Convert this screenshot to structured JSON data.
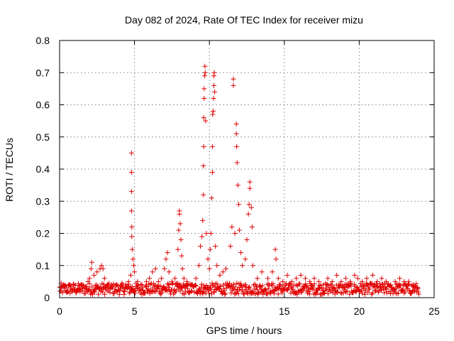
{
  "chart_data": {
    "type": "scatter",
    "title": "Day 082 of 2024, Rate Of TEC Index for receiver mizu",
    "xlabel": "GPS time / hours",
    "ylabel": "ROTI / TECUs",
    "xlim": [
      0,
      25
    ],
    "ylim": [
      0,
      0.8
    ],
    "grid": true,
    "marker": "+",
    "series_color": "#e00000",
    "x_ticks": [
      0,
      5,
      10,
      15,
      20,
      25
    ],
    "x_tick_labels": [
      "0",
      "5",
      "10",
      "15",
      "20",
      "25"
    ],
    "y_ticks": [
      0,
      0.1,
      0.2,
      0.3,
      0.4,
      0.5,
      0.6,
      0.7,
      0.8
    ],
    "y_tick_labels": [
      "0",
      "0.1",
      "0.2",
      "0.3",
      "0.4",
      "0.5",
      "0.6",
      "0.7",
      "0.8"
    ],
    "series": [
      {
        "name": "ROTI",
        "points": [
          [
            0.1,
            0.02
          ],
          [
            0.3,
            0.03
          ],
          [
            0.5,
            0.02
          ],
          [
            0.7,
            0.04
          ],
          [
            0.9,
            0.03
          ],
          [
            1.1,
            0.02
          ],
          [
            1.3,
            0.03
          ],
          [
            1.5,
            0.04
          ],
          [
            1.7,
            0.03
          ],
          [
            1.9,
            0.05
          ],
          [
            2.0,
            0.06
          ],
          [
            2.1,
            0.09
          ],
          [
            2.15,
            0.11
          ],
          [
            2.3,
            0.07
          ],
          [
            2.5,
            0.08
          ],
          [
            2.7,
            0.09
          ],
          [
            2.8,
            0.1
          ],
          [
            2.9,
            0.09
          ],
          [
            3.0,
            0.06
          ],
          [
            3.2,
            0.04
          ],
          [
            3.5,
            0.03
          ],
          [
            3.8,
            0.04
          ],
          [
            4.1,
            0.03
          ],
          [
            4.4,
            0.04
          ],
          [
            4.6,
            0.05
          ],
          [
            4.75,
            0.07
          ],
          [
            4.8,
            0.45
          ],
          [
            4.8,
            0.39
          ],
          [
            4.8,
            0.33
          ],
          [
            4.8,
            0.27
          ],
          [
            4.82,
            0.22
          ],
          [
            4.82,
            0.19
          ],
          [
            4.85,
            0.15
          ],
          [
            4.9,
            0.12
          ],
          [
            4.95,
            0.1
          ],
          [
            5.0,
            0.08
          ],
          [
            5.2,
            0.05
          ],
          [
            5.5,
            0.04
          ],
          [
            5.8,
            0.05
          ],
          [
            6.0,
            0.06
          ],
          [
            6.2,
            0.08
          ],
          [
            6.4,
            0.09
          ],
          [
            6.6,
            0.05
          ],
          [
            6.8,
            0.06
          ],
          [
            7.0,
            0.09
          ],
          [
            7.1,
            0.12
          ],
          [
            7.2,
            0.14
          ],
          [
            7.3,
            0.08
          ],
          [
            7.5,
            0.05
          ],
          [
            7.7,
            0.06
          ],
          [
            7.9,
            0.15
          ],
          [
            7.95,
            0.21
          ],
          [
            8.0,
            0.27
          ],
          [
            8.0,
            0.26
          ],
          [
            8.05,
            0.23
          ],
          [
            8.1,
            0.18
          ],
          [
            8.15,
            0.13
          ],
          [
            8.2,
            0.09
          ],
          [
            8.3,
            0.06
          ],
          [
            8.5,
            0.05
          ],
          [
            8.8,
            0.04
          ],
          [
            9.1,
            0.06
          ],
          [
            9.3,
            0.1
          ],
          [
            9.4,
            0.16
          ],
          [
            9.5,
            0.19
          ],
          [
            9.55,
            0.24
          ],
          [
            9.6,
            0.32
          ],
          [
            9.6,
            0.41
          ],
          [
            9.62,
            0.47
          ],
          [
            9.62,
            0.56
          ],
          [
            9.65,
            0.62
          ],
          [
            9.65,
            0.65
          ],
          [
            9.68,
            0.69
          ],
          [
            9.7,
            0.72
          ],
          [
            9.72,
            0.7
          ],
          [
            9.75,
            0.55
          ],
          [
            9.8,
            0.2
          ],
          [
            9.9,
            0.12
          ],
          [
            10.0,
            0.09
          ],
          [
            10.05,
            0.15
          ],
          [
            10.1,
            0.2
          ],
          [
            10.15,
            0.31
          ],
          [
            10.2,
            0.39
          ],
          [
            10.2,
            0.47
          ],
          [
            10.22,
            0.57
          ],
          [
            10.25,
            0.58
          ],
          [
            10.28,
            0.62
          ],
          [
            10.3,
            0.66
          ],
          [
            10.3,
            0.69
          ],
          [
            10.32,
            0.7
          ],
          [
            10.35,
            0.64
          ],
          [
            10.4,
            0.16
          ],
          [
            10.5,
            0.1
          ],
          [
            10.7,
            0.07
          ],
          [
            10.9,
            0.08
          ],
          [
            11.1,
            0.09
          ],
          [
            11.4,
            0.16
          ],
          [
            11.5,
            0.22
          ],
          [
            11.6,
            0.68
          ],
          [
            11.6,
            0.66
          ],
          [
            11.7,
            0.2
          ],
          [
            11.8,
            0.54
          ],
          [
            11.8,
            0.51
          ],
          [
            11.82,
            0.47
          ],
          [
            11.85,
            0.42
          ],
          [
            11.9,
            0.35
          ],
          [
            11.95,
            0.29
          ],
          [
            12.0,
            0.21
          ],
          [
            12.1,
            0.14
          ],
          [
            12.2,
            0.1
          ],
          [
            12.4,
            0.12
          ],
          [
            12.5,
            0.18
          ],
          [
            12.6,
            0.26
          ],
          [
            12.65,
            0.29
          ],
          [
            12.7,
            0.36
          ],
          [
            12.7,
            0.34
          ],
          [
            12.8,
            0.28
          ],
          [
            12.85,
            0.22
          ],
          [
            12.9,
            0.1
          ],
          [
            13.2,
            0.06
          ],
          [
            13.5,
            0.08
          ],
          [
            13.9,
            0.06
          ],
          [
            14.2,
            0.08
          ],
          [
            14.4,
            0.15
          ],
          [
            14.45,
            0.12
          ],
          [
            14.6,
            0.06
          ],
          [
            14.9,
            0.05
          ],
          [
            15.2,
            0.07
          ],
          [
            15.5,
            0.05
          ],
          [
            15.8,
            0.06
          ],
          [
            16.1,
            0.07
          ],
          [
            16.4,
            0.06
          ],
          [
            16.7,
            0.05
          ],
          [
            17.0,
            0.06
          ],
          [
            17.3,
            0.05
          ],
          [
            17.6,
            0.04
          ],
          [
            17.9,
            0.06
          ],
          [
            18.2,
            0.05
          ],
          [
            18.5,
            0.07
          ],
          [
            18.8,
            0.05
          ],
          [
            19.1,
            0.06
          ],
          [
            19.4,
            0.05
          ],
          [
            19.7,
            0.07
          ],
          [
            19.9,
            0.06
          ],
          [
            20.2,
            0.05
          ],
          [
            20.5,
            0.06
          ],
          [
            20.9,
            0.07
          ],
          [
            21.2,
            0.05
          ],
          [
            21.5,
            0.06
          ],
          [
            21.8,
            0.05
          ],
          [
            22.1,
            0.04
          ],
          [
            22.4,
            0.05
          ],
          [
            22.7,
            0.06
          ],
          [
            23.0,
            0.05
          ],
          [
            23.3,
            0.05
          ],
          [
            23.6,
            0.04
          ],
          [
            23.9,
            0.03
          ]
        ],
        "baseline_band": {
          "x_start": 0,
          "x_end": 24,
          "y_min": 0.01,
          "y_max": 0.045
        }
      }
    ]
  }
}
